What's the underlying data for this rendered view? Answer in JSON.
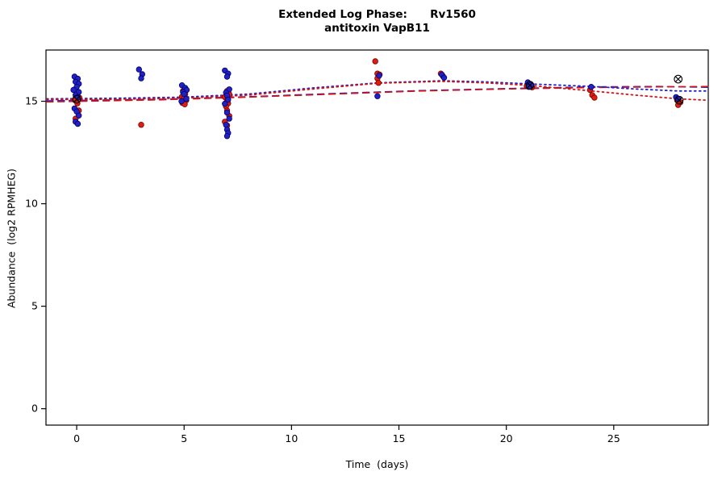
{
  "chart_data": {
    "type": "scatter",
    "title_line1": "Extended Log Phase:      Rv1560",
    "title_line2": "antitoxin VapB11",
    "xlabel": "Time  (days)",
    "ylabel": "Abundance  (log2 RPMHEG)",
    "xlim": [
      -1.43,
      29.4
    ],
    "ylim": [
      -0.8,
      17.5
    ],
    "x_ticks": [
      0,
      5,
      10,
      15,
      20,
      25
    ],
    "y_ticks": [
      0,
      5,
      10,
      15
    ],
    "grid": false,
    "legend": "none",
    "colors": {
      "red_fill": "#DE1F10",
      "red_edge": "#7A0000",
      "blue_fill": "#2222C4",
      "blue_edge": "#000070",
      "red_line": "#D41414",
      "blue_line": "#2222CC",
      "marker_stroke": "#000000",
      "axis": "#000000"
    },
    "series": [
      {
        "name": "red-points",
        "color": "#DE1F10",
        "edge": "#7A0000",
        "points": [
          [
            0.12,
            15.18
          ],
          [
            -0.08,
            15.05
          ],
          [
            0.03,
            14.9
          ],
          [
            0.1,
            14.55
          ],
          [
            -0.05,
            14.15
          ],
          [
            3.0,
            13.85
          ],
          [
            4.95,
            15.5
          ],
          [
            5.05,
            15.35
          ],
          [
            4.9,
            15.22
          ],
          [
            5.0,
            15.15
          ],
          [
            5.1,
            15.05
          ],
          [
            4.92,
            14.92
          ],
          [
            5.03,
            14.85
          ],
          [
            7.0,
            15.5
          ],
          [
            7.1,
            15.35
          ],
          [
            6.9,
            15.2
          ],
          [
            7.0,
            15.05
          ],
          [
            7.05,
            14.9
          ],
          [
            6.95,
            14.75
          ],
          [
            7.0,
            14.55
          ],
          [
            7.1,
            14.28
          ],
          [
            6.9,
            14.0
          ],
          [
            7.0,
            13.82
          ],
          [
            13.9,
            16.95
          ],
          [
            14.0,
            16.35
          ],
          [
            14.1,
            16.3
          ],
          [
            14.0,
            16.12
          ],
          [
            14.05,
            15.9
          ],
          [
            16.95,
            16.35
          ],
          [
            17.05,
            16.22
          ],
          [
            21.1,
            15.85
          ],
          [
            20.95,
            15.75
          ],
          [
            21.2,
            15.68
          ],
          [
            23.9,
            15.55
          ],
          [
            24.0,
            15.3
          ],
          [
            24.1,
            15.18
          ],
          [
            27.95,
            15.05
          ],
          [
            28.1,
            14.95
          ],
          [
            28.0,
            14.82
          ]
        ]
      },
      {
        "name": "blue-points",
        "color": "#2222C4",
        "edge": "#000070",
        "points": [
          [
            -0.1,
            16.2
          ],
          [
            0.05,
            16.1
          ],
          [
            -0.05,
            15.95
          ],
          [
            0.1,
            15.85
          ],
          [
            0.0,
            15.7
          ],
          [
            -0.15,
            15.55
          ],
          [
            0.1,
            15.45
          ],
          [
            -0.05,
            15.3
          ],
          [
            0.05,
            15.2
          ],
          [
            -0.1,
            14.65
          ],
          [
            0.0,
            14.5
          ],
          [
            0.1,
            14.3
          ],
          [
            -0.05,
            14.0
          ],
          [
            0.05,
            13.9
          ],
          [
            2.9,
            16.55
          ],
          [
            3.05,
            16.32
          ],
          [
            3.0,
            16.12
          ],
          [
            4.9,
            15.78
          ],
          [
            5.05,
            15.65
          ],
          [
            5.12,
            15.55
          ],
          [
            4.95,
            15.45
          ],
          [
            5.0,
            15.35
          ],
          [
            5.1,
            15.12
          ],
          [
            4.88,
            15.0
          ],
          [
            6.9,
            16.5
          ],
          [
            7.05,
            16.35
          ],
          [
            7.0,
            16.2
          ],
          [
            7.1,
            15.58
          ],
          [
            6.95,
            15.42
          ],
          [
            7.0,
            15.28
          ],
          [
            7.05,
            15.08
          ],
          [
            6.9,
            14.88
          ],
          [
            7.0,
            14.45
          ],
          [
            7.1,
            14.15
          ],
          [
            6.95,
            13.85
          ],
          [
            7.0,
            13.62
          ],
          [
            7.05,
            13.45
          ],
          [
            7.0,
            13.3
          ],
          [
            14.0,
            15.25
          ],
          [
            14.08,
            16.25
          ],
          [
            17.0,
            16.3
          ],
          [
            17.1,
            16.15
          ],
          [
            21.0,
            15.92
          ],
          [
            21.15,
            15.8
          ],
          [
            21.05,
            15.7
          ],
          [
            23.95,
            15.7
          ],
          [
            27.9,
            15.2
          ],
          [
            28.0,
            15.12
          ]
        ]
      }
    ],
    "trend_lines": [
      {
        "name": "blue-dashed-fit",
        "color": "#2222CC",
        "dash": [
          8,
          6
        ],
        "width": 1.6,
        "points": [
          [
            -1.4,
            15.02
          ],
          [
            4,
            15.1
          ],
          [
            8,
            15.22
          ],
          [
            12,
            15.38
          ],
          [
            16,
            15.52
          ],
          [
            20,
            15.62
          ],
          [
            24,
            15.7
          ],
          [
            27,
            15.72
          ],
          [
            29.4,
            15.68
          ]
        ]
      },
      {
        "name": "red-dashed-fit",
        "color": "#D41414",
        "dash": [
          8,
          6
        ],
        "width": 1.6,
        "points": [
          [
            -1.4,
            14.97
          ],
          [
            4,
            15.07
          ],
          [
            8,
            15.2
          ],
          [
            12,
            15.35
          ],
          [
            16,
            15.5
          ],
          [
            20,
            15.6
          ],
          [
            24,
            15.67
          ],
          [
            27,
            15.7
          ],
          [
            29.4,
            15.72
          ]
        ]
      },
      {
        "name": "blue-dotted-fit",
        "color": "#2222CC",
        "dash": [
          2,
          4
        ],
        "width": 1.8,
        "points": [
          [
            -1.4,
            15.12
          ],
          [
            2,
            15.15
          ],
          [
            5,
            15.2
          ],
          [
            8,
            15.35
          ],
          [
            11,
            15.65
          ],
          [
            14,
            15.9
          ],
          [
            17,
            16.0
          ],
          [
            19,
            15.95
          ],
          [
            21,
            15.85
          ],
          [
            24,
            15.72
          ],
          [
            26,
            15.6
          ],
          [
            28,
            15.5
          ],
          [
            29.4,
            15.5
          ]
        ]
      },
      {
        "name": "red-dotted-fit",
        "color": "#D41414",
        "dash": [
          2,
          4
        ],
        "width": 1.8,
        "points": [
          [
            -1.4,
            15.08
          ],
          [
            2,
            15.1
          ],
          [
            5,
            15.15
          ],
          [
            8,
            15.3
          ],
          [
            11,
            15.6
          ],
          [
            14,
            15.88
          ],
          [
            17,
            15.97
          ],
          [
            19,
            15.9
          ],
          [
            21,
            15.78
          ],
          [
            24,
            15.5
          ],
          [
            26,
            15.3
          ],
          [
            28,
            15.12
          ],
          [
            29.4,
            15.05
          ]
        ]
      }
    ],
    "flagged_points": [
      {
        "x": 0.0,
        "y": 15.1
      },
      {
        "x": 21.1,
        "y": 15.78
      },
      {
        "x": 28.0,
        "y": 16.08
      },
      {
        "x": 28.05,
        "y": 15.05
      }
    ]
  }
}
